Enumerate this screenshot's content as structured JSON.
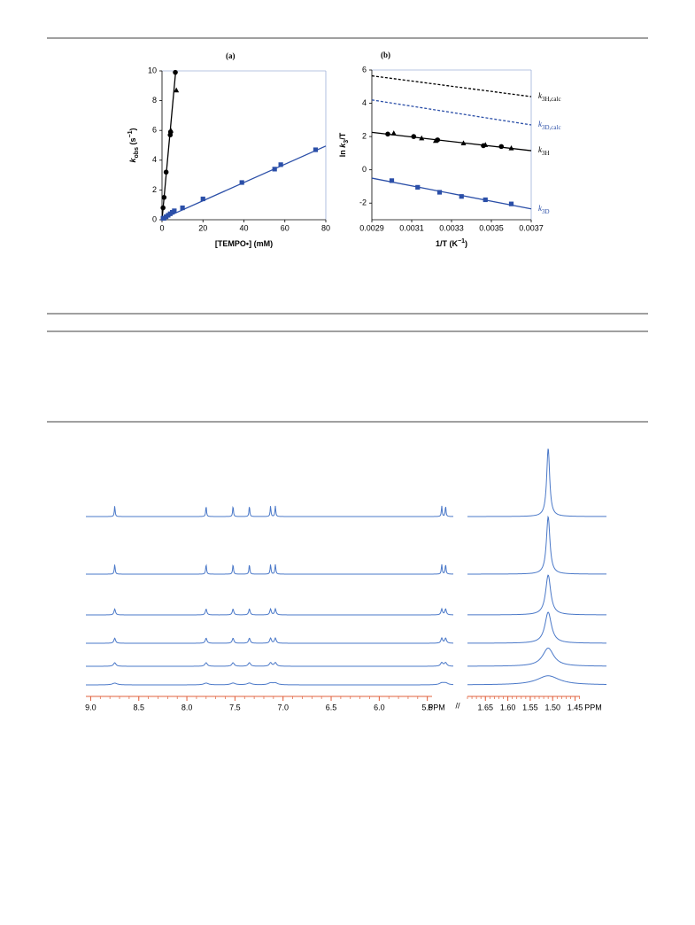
{
  "chart_data": [
    {
      "type": "scatter",
      "panel_label": "(a)",
      "x_label": [
        {
          "text": "[TEMPO•] (mM)",
          "style": "normal"
        }
      ],
      "y_label": [
        {
          "text": "k",
          "style": "italic"
        },
        {
          "text": "obs",
          "style": "sub"
        },
        {
          "text": " (s",
          "style": "normal"
        },
        {
          "text": "−1",
          "style": "sup"
        },
        {
          "text": ")",
          "style": "normal"
        }
      ],
      "xlim": [
        0,
        80
      ],
      "xticks": [
        0,
        20,
        40,
        60,
        80
      ],
      "ylim": [
        0,
        10
      ],
      "yticks": [
        0,
        2,
        4,
        6,
        8,
        10
      ],
      "series": [
        {
          "marker": "circle",
          "color": "#000000",
          "x": [
            0.5,
            1,
            2,
            4,
            4.2,
            6.5
          ],
          "values": [
            0.8,
            1.5,
            3.2,
            5.7,
            5.9,
            9.9
          ]
        },
        {
          "marker": "triangle",
          "color": "#000000",
          "x": [
            4.3,
            7
          ],
          "values": [
            6.0,
            8.7
          ]
        },
        {
          "marker": "square",
          "color": "#2b4fa8",
          "x": [
            0.5,
            1,
            2,
            3,
            4,
            5,
            6,
            10,
            20,
            39,
            55,
            58,
            75
          ],
          "values": [
            0.1,
            0.1,
            0.2,
            0.3,
            0.4,
            0.5,
            0.6,
            0.8,
            1.4,
            2.5,
            3.4,
            3.7,
            4.7
          ]
        }
      ],
      "lines": [
        {
          "color": "#000000",
          "dash": false,
          "x": [
            0,
            6.7
          ],
          "values": [
            0,
            10
          ]
        },
        {
          "color": "#2b4fa8",
          "dash": false,
          "x": [
            0,
            80
          ],
          "values": [
            0.05,
            4.95
          ]
        }
      ]
    },
    {
      "type": "scatter",
      "panel_label": "(b)",
      "x_label": [
        {
          "text": "1/T (K",
          "style": "normal"
        },
        {
          "text": "−1",
          "style": "sup"
        },
        {
          "text": ")",
          "style": "normal"
        }
      ],
      "y_label": [
        {
          "text": "ln ",
          "style": "normal"
        },
        {
          "text": "k",
          "style": "italic"
        },
        {
          "text": "3",
          "style": "sub"
        },
        {
          "text": "/T",
          "style": "normal"
        }
      ],
      "xlim": [
        0.0029,
        0.0037
      ],
      "xticks": [
        0.0029,
        0.0031,
        0.0033,
        0.0035,
        0.0037
      ],
      "ylim": [
        -3,
        6
      ],
      "yticks": [
        -2,
        0,
        2,
        4,
        6
      ],
      "series": [
        {
          "marker": "circle",
          "color": "#000000",
          "x": [
            0.00298,
            0.00311,
            0.00323,
            0.00346,
            0.00355
          ],
          "values": [
            2.15,
            2.0,
            1.8,
            1.45,
            1.4
          ]
        },
        {
          "marker": "triangle",
          "color": "#000000",
          "x": [
            0.00301,
            0.00315,
            0.00322,
            0.00336,
            0.00347,
            0.0036
          ],
          "values": [
            2.2,
            1.9,
            1.75,
            1.6,
            1.5,
            1.3
          ]
        },
        {
          "marker": "square",
          "color": "#2b4fa8",
          "x": [
            0.003,
            0.00313,
            0.00324,
            0.00335,
            0.00347,
            0.0036
          ],
          "values": [
            -0.65,
            -1.05,
            -1.35,
            -1.6,
            -1.8,
            -2.05
          ]
        }
      ],
      "lines": [
        {
          "color": "#000000",
          "dash": true,
          "x": [
            0.0029,
            0.0037
          ],
          "values": [
            5.65,
            4.4
          ],
          "label": [
            {
              "text": "k",
              "style": "italic"
            },
            {
              "text": "3H,calc",
              "style": "sub"
            }
          ]
        },
        {
          "color": "#2b4fa8",
          "dash": true,
          "x": [
            0.0029,
            0.0037
          ],
          "values": [
            4.2,
            2.7
          ],
          "label": [
            {
              "text": "k",
              "style": "italic"
            },
            {
              "text": "3D,calc",
              "style": "sub"
            }
          ]
        },
        {
          "color": "#000000",
          "dash": false,
          "x": [
            0.0029,
            0.0037
          ],
          "values": [
            2.25,
            1.15
          ],
          "label": [
            {
              "text": "k",
              "style": "italic"
            },
            {
              "text": "3H",
              "style": "sub"
            }
          ]
        },
        {
          "color": "#2b4fa8",
          "dash": false,
          "x": [
            0.0029,
            0.0037
          ],
          "values": [
            -0.5,
            -2.35
          ],
          "label": [
            {
              "text": "k",
              "style": "italic"
            },
            {
              "text": "3D",
              "style": "sub"
            }
          ]
        }
      ]
    },
    {
      "type": "nmr",
      "unit_label": "PPM",
      "color": "#4a78c8",
      "axis_color": "#e0603c",
      "panels": [
        {
          "xlim": [
            9.05,
            5.23
          ],
          "xticks": [
            {
              "value": 9,
              "label": "9.0"
            },
            8.5,
            {
              "value": 8,
              "label": "8.0"
            },
            7.5,
            {
              "value": 7,
              "label": "7.0"
            },
            6.5,
            {
              "value": 6,
              "label": "6.0"
            },
            5.5
          ],
          "minor_step": 0.1,
          "peaks": [
            8.75,
            7.8,
            7.52,
            7.35,
            7.13,
            7.08,
            5.35,
            5.31
          ]
        },
        {
          "xlim": [
            1.69,
            1.38
          ],
          "xticks": [
            1.65,
            {
              "value": 1.6,
              "label": "1.60"
            },
            1.55,
            {
              "value": 1.5,
              "label": "1.50"
            },
            1.45
          ],
          "minor_step": 0.01,
          "peaks": [
            1.51
          ]
        }
      ],
      "traces": [
        {
          "widths": [
            0.01,
            0.008
          ]
        },
        {
          "widths": [
            0.011,
            0.0095
          ]
        },
        {
          "widths": [
            0.018,
            0.0137
          ]
        },
        {
          "widths": [
            0.021,
            0.0176
          ]
        },
        {
          "widths": [
            0.03,
            0.03
          ]
        },
        {
          "widths": [
            0.06,
            0.06
          ]
        }
      ]
    }
  ]
}
